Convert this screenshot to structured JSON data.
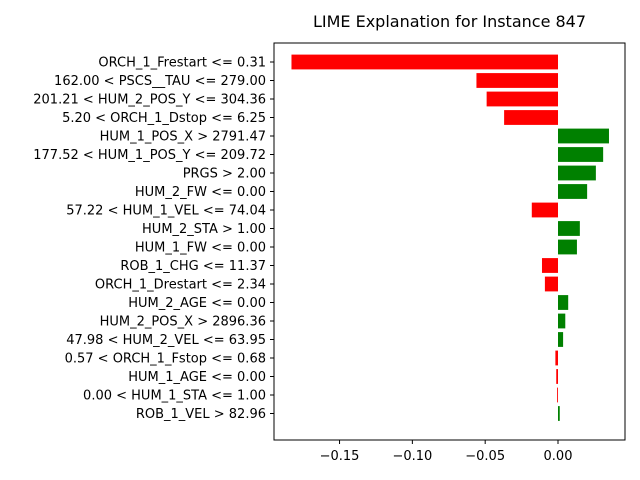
{
  "chart_data": {
    "type": "bar",
    "orientation": "horizontal",
    "title": "LIME Explanation for Instance 847",
    "xlabel": "",
    "ylabel": "",
    "xlim": [
      -0.195,
      0.046
    ],
    "xticks": [
      {
        "value": -0.15,
        "label": "−0.15"
      },
      {
        "value": -0.1,
        "label": "−0.10"
      },
      {
        "value": -0.05,
        "label": "−0.05"
      },
      {
        "value": 0.0,
        "label": "0.00"
      }
    ],
    "grid": false,
    "colors": {
      "positive": "#008000",
      "negative": "#ff0000"
    },
    "categories": [
      "ORCH_1_Frestart <= 0.31",
      "162.00 < PSCS__TAU <= 279.00",
      "201.21 < HUM_2_POS_Y <= 304.36",
      "5.20 < ORCH_1_Dstop <= 6.25",
      "HUM_1_POS_X > 2791.47",
      "177.52 < HUM_1_POS_Y <= 209.72",
      "PRGS > 2.00",
      "HUM_2_FW <= 0.00",
      "57.22 < HUM_1_VEL <= 74.04",
      "HUM_2_STA > 1.00",
      "HUM_1_FW <= 0.00",
      "ROB_1_CHG <= 11.37",
      "ORCH_1_Drestart <= 2.34",
      "HUM_2_AGE <= 0.00",
      "HUM_2_POS_X > 2896.36",
      "47.98 < HUM_2_VEL <= 63.95",
      "0.57 < ORCH_1_Fstop <= 0.68",
      "HUM_1_AGE <= 0.00",
      "0.00 < HUM_1_STA <= 1.00",
      "ROB_1_VEL > 82.96"
    ],
    "values": [
      -0.183,
      -0.056,
      -0.049,
      -0.037,
      0.035,
      0.031,
      0.026,
      0.02,
      -0.018,
      0.015,
      0.013,
      -0.011,
      -0.009,
      0.007,
      0.005,
      0.0035,
      -0.0018,
      -0.0012,
      -0.0006,
      0.0012
    ]
  }
}
